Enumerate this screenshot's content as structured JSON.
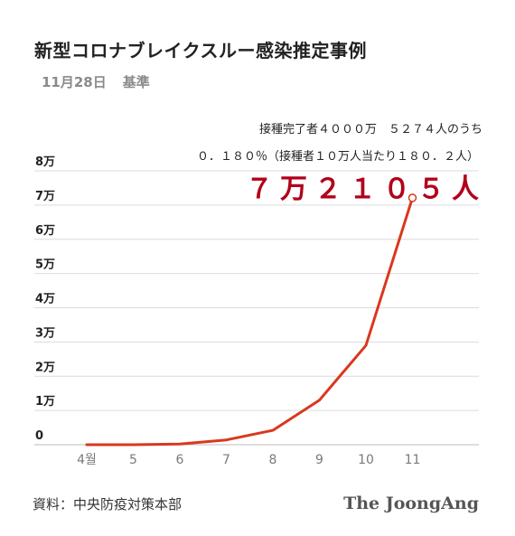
{
  "title": "新型コロナブレイクスルー感染推定事例",
  "subtitle_date": "11月28日",
  "subtitle_basis": "基準",
  "annotation_line1": "接種完了者４０００万　５２７４人のうち",
  "annotation_line2": "０．１８０％（接種者１０万人当たり１８０．２人）",
  "annotation_big": "７万２１０５人",
  "source": "資料：中央防疫対策本部",
  "logo": "The JoongAng",
  "colors": {
    "line": "#d9381e",
    "grid": "#dcdcdc",
    "highlight": "#b2001a"
  },
  "chart_data": {
    "type": "line",
    "categories": [
      "4월",
      "5",
      "6",
      "7",
      "8",
      "9",
      "10",
      "11"
    ],
    "values": [
      0,
      0,
      200,
      1400,
      4200,
      13000,
      29000,
      72105
    ],
    "ylim": [
      0,
      80000
    ],
    "yticks": [
      0,
      10000,
      20000,
      30000,
      40000,
      50000,
      60000,
      70000,
      80000
    ],
    "ytick_labels": [
      "0",
      "1万",
      "2万",
      "3万",
      "4万",
      "5万",
      "6万",
      "7万",
      "8万"
    ],
    "grid": true,
    "marker_last": true
  }
}
